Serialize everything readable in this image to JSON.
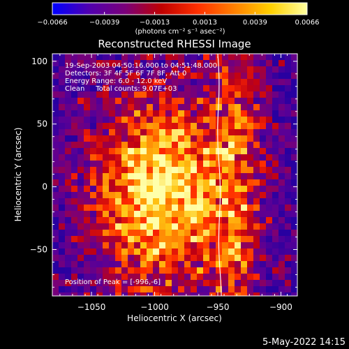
{
  "chart_data": {
    "type": "heatmap",
    "title": "Reconstructed RHESSI Image",
    "xlabel": "Heliocentric X (arcsec)",
    "ylabel": "Heliocentric Y (arcsec)",
    "xlim": [
      -1081,
      -887
    ],
    "ylim": [
      -87,
      106
    ],
    "xticks": [
      -1050,
      -1000,
      -950,
      -900
    ],
    "xtick_labels": [
      "−1050",
      "−1000",
      "−950",
      "−900"
    ],
    "yticks": [
      100,
      50,
      0,
      -50
    ],
    "ytick_labels": [
      "100",
      "50",
      "0",
      "−50"
    ],
    "colorbar": {
      "min": -0.0066,
      "max": 0.0066,
      "ticks": [
        -0.0066,
        -0.0039,
        -0.0013,
        0.0013,
        0.0039,
        0.0066
      ],
      "tick_labels": [
        "−0.0066",
        "−0.0039",
        "−0.0013",
        "0.0013",
        "0.0039",
        "0.0066"
      ],
      "unit_label": "(photons cm⁻² s⁻¹ asec⁻²)",
      "colors": [
        "#0000ff",
        "#5000b0",
        "#7a007a",
        "#c00000",
        "#ff3000",
        "#ff8000",
        "#ffd000",
        "#ffffa0"
      ]
    },
    "annotations": [
      "19-Sep-2003 04:50:16.000 to 04:51:48.000",
      "Detectors: 3F 4F 5F 6F 7F 8F, Att 0",
      "Energy Range: 6.0 - 12.0 keV",
      "Clean     Total counts: 9.07E+03"
    ],
    "peak_label": "Position of Peak = [-996,-6]",
    "peak": [
      -996,
      -6
    ],
    "limb_line_color": "#ffffff"
  },
  "footer": {
    "timestamp": "5-May-2022 14:15"
  }
}
